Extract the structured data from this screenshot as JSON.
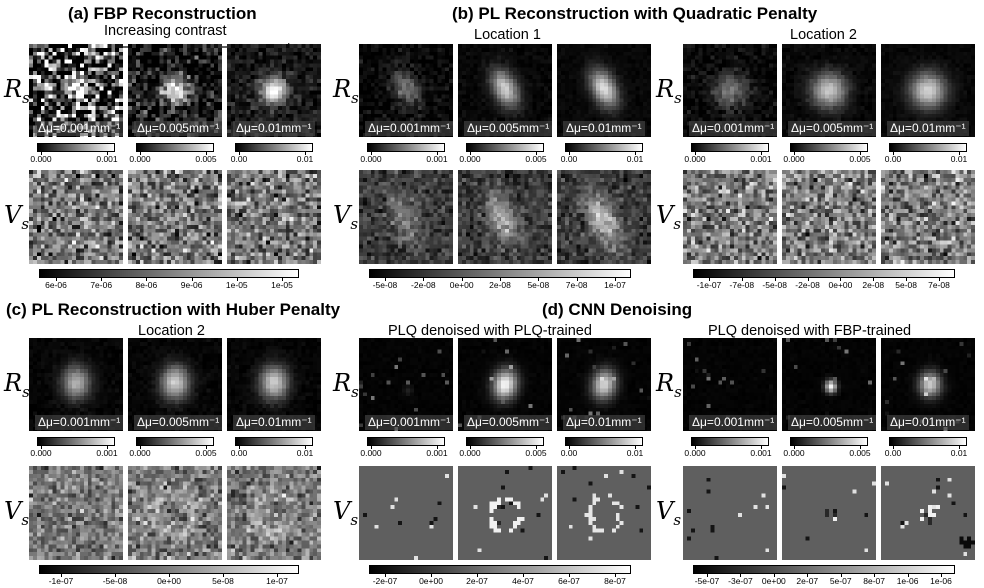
{
  "panels": [
    {
      "id": "a",
      "title": "(a) FBP Reconstruction",
      "subtitle": "Increasing contrast"
    },
    {
      "id": "b",
      "title": "(b) PL Reconstruction with Quadratic Penalty",
      "loc1": "Location 1",
      "loc2": "Location 2"
    },
    {
      "id": "c",
      "title": "(c) PL Reconstruction with Huber Penalty",
      "loc": "Location 2"
    },
    {
      "id": "d",
      "title": "(d) CNN Denoising",
      "sub1": "PLQ denoised with PLQ-trained",
      "sub2": "PLQ denoised with FBP-trained"
    }
  ],
  "row_labels": {
    "R": "R",
    "V": "V",
    "sub": "s"
  },
  "contrast_labels": [
    "Δμ=0.001mm⁻¹",
    "Δμ=0.005mm⁻¹",
    "Δμ=0.01mm⁻¹"
  ],
  "r_colorbar_ticks": [
    [
      "0.000",
      "0.001"
    ],
    [
      "0.000",
      "0.005"
    ],
    [
      "0.00",
      "0.01"
    ]
  ],
  "v_colorbar_ticks": {
    "a": [
      "6e-06",
      "7e-06",
      "8e-06",
      "9e-06",
      "1e-05",
      "1e-05"
    ],
    "b1": [
      "-5e-08",
      "-2e-08",
      "0e+00",
      "2e-08",
      "5e-08",
      "7e-08",
      "1e-07"
    ],
    "b2": [
      "-1e-07",
      "-7e-08",
      "-5e-08",
      "-2e-08",
      "0e+00",
      "2e-08",
      "5e-08",
      "7e-08"
    ],
    "c": [
      "-1e-07",
      "-5e-08",
      "0e+00",
      "5e-08",
      "1e-07"
    ],
    "d1": [
      "-2e-07",
      "0e+00",
      "2e-07",
      "4e-07",
      "6e-07",
      "8e-07"
    ],
    "d2": [
      "-5e-07",
      "-3e-07",
      "0e+00",
      "2e-07",
      "5e-07",
      "8e-07",
      "1e-06",
      "1e-06"
    ]
  }
}
